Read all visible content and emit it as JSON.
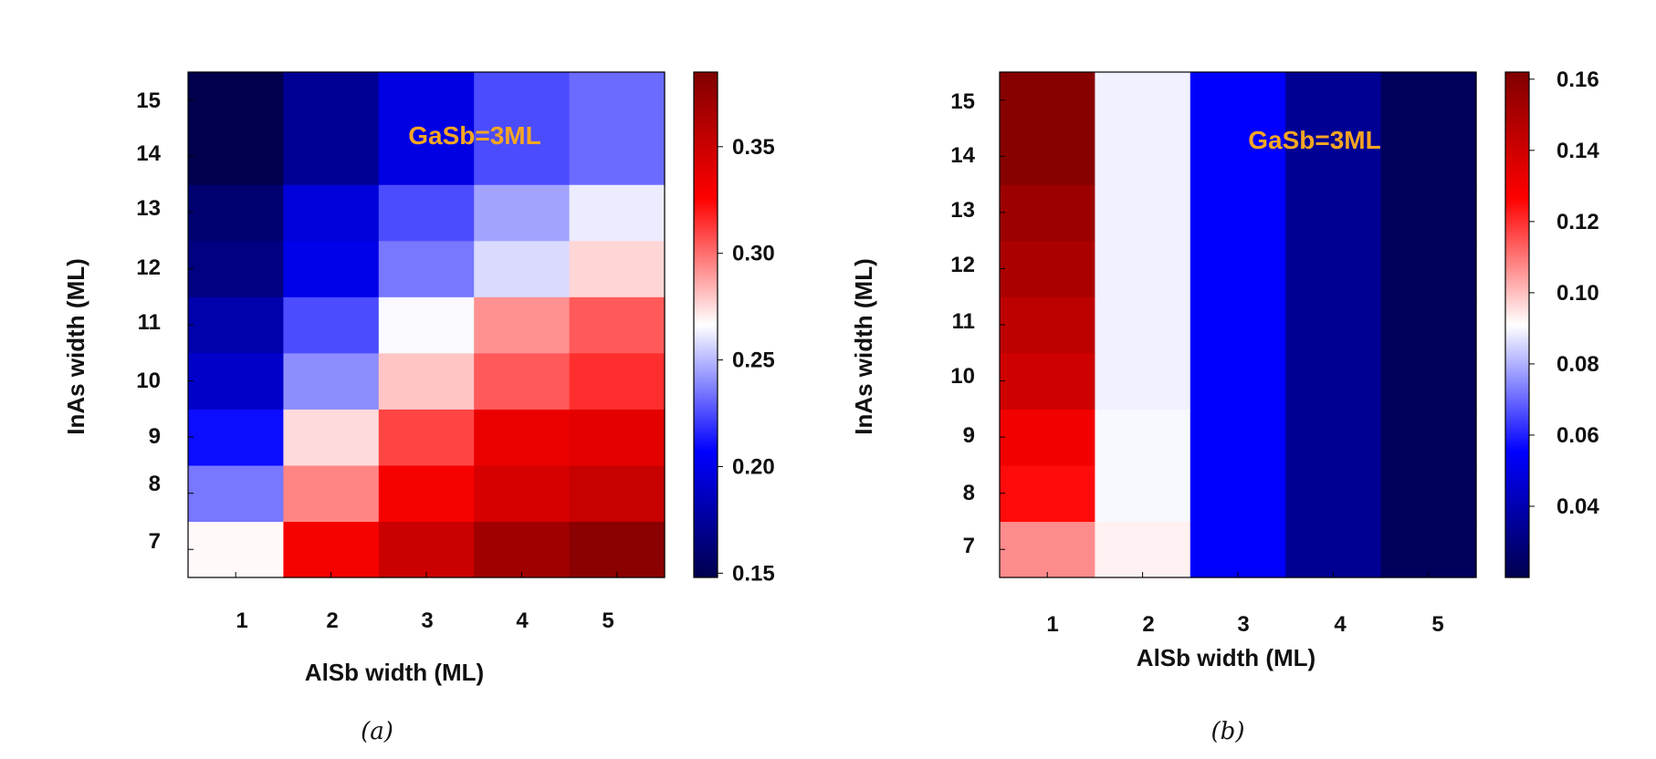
{
  "chart_data": [
    {
      "type": "heatmap",
      "panel_label": "(a)",
      "title": "",
      "xlabel": "AlSb width (ML)",
      "ylabel": "InAs width (ML)",
      "x": [
        "1",
        "2",
        "3",
        "4",
        "5"
      ],
      "y": [
        "7",
        "8",
        "9",
        "10",
        "11",
        "12",
        "13",
        "14",
        "15"
      ],
      "row_bands": [
        {
          "from": "7",
          "to": "7"
        },
        {
          "from": "8",
          "to": "8"
        },
        {
          "from": "9",
          "to": "9"
        },
        {
          "from": "10",
          "to": "10"
        },
        {
          "from": "11",
          "to": "11"
        },
        {
          "from": "12",
          "to": "12"
        },
        {
          "from": "13",
          "to": "13"
        },
        {
          "from": "14",
          "to": "15"
        }
      ],
      "values": [
        [
          0.268,
          0.33,
          0.35,
          0.37,
          0.38
        ],
        [
          0.235,
          0.295,
          0.33,
          0.345,
          0.352
        ],
        [
          0.21,
          0.275,
          0.31,
          0.335,
          0.338
        ],
        [
          0.19,
          0.24,
          0.28,
          0.305,
          0.315
        ],
        [
          0.18,
          0.225,
          0.265,
          0.292,
          0.305
        ],
        [
          0.165,
          0.2,
          0.235,
          0.258,
          0.276
        ],
        [
          0.16,
          0.195,
          0.225,
          0.245,
          0.262
        ],
        [
          0.147,
          0.172,
          0.198,
          0.225,
          0.232
        ]
      ],
      "annotation": "GaSb=3ML",
      "annotation_color": "#F5A623",
      "colorbar": {
        "min": 0.148,
        "max": 0.385,
        "ticks": [
          0.15,
          0.2,
          0.25,
          0.3,
          0.35
        ],
        "tick_labels": [
          "0.15",
          "0.20",
          "0.25",
          "0.30",
          "0.35"
        ],
        "colormap": "seismic"
      }
    },
    {
      "type": "heatmap",
      "panel_label": "(b)",
      "title": "",
      "xlabel": "AlSb width (ML)",
      "ylabel": "InAs width (ML)",
      "x": [
        "1",
        "2",
        "3",
        "4",
        "5"
      ],
      "y": [
        "7",
        "8",
        "9",
        "10",
        "11",
        "12",
        "13",
        "14",
        "15"
      ],
      "row_bands": [
        {
          "from": "7",
          "to": "7"
        },
        {
          "from": "8",
          "to": "8"
        },
        {
          "from": "9",
          "to": "9"
        },
        {
          "from": "10",
          "to": "10"
        },
        {
          "from": "11",
          "to": "11"
        },
        {
          "from": "12",
          "to": "12"
        },
        {
          "from": "13",
          "to": "13"
        },
        {
          "from": "14",
          "to": "15"
        }
      ],
      "values": [
        [
          0.107,
          0.093,
          0.055,
          0.034,
          0.023
        ],
        [
          0.125,
          0.09,
          0.055,
          0.034,
          0.023
        ],
        [
          0.13,
          0.09,
          0.055,
          0.034,
          0.023
        ],
        [
          0.14,
          0.089,
          0.055,
          0.034,
          0.023
        ],
        [
          0.145,
          0.089,
          0.055,
          0.034,
          0.023
        ],
        [
          0.15,
          0.089,
          0.055,
          0.034,
          0.023
        ],
        [
          0.154,
          0.089,
          0.055,
          0.034,
          0.023
        ],
        [
          0.16,
          0.089,
          0.055,
          0.034,
          0.023
        ]
      ],
      "annotation": "GaSb=3ML",
      "annotation_color": "#F5A623",
      "colorbar": {
        "min": 0.02,
        "max": 0.162,
        "ticks": [
          0.04,
          0.06,
          0.08,
          0.1,
          0.12,
          0.14,
          0.16
        ],
        "tick_labels": [
          "0.04",
          "0.06",
          "0.08",
          "0.10",
          "0.12",
          "0.14",
          "0.16"
        ],
        "colormap": "seismic"
      }
    }
  ]
}
